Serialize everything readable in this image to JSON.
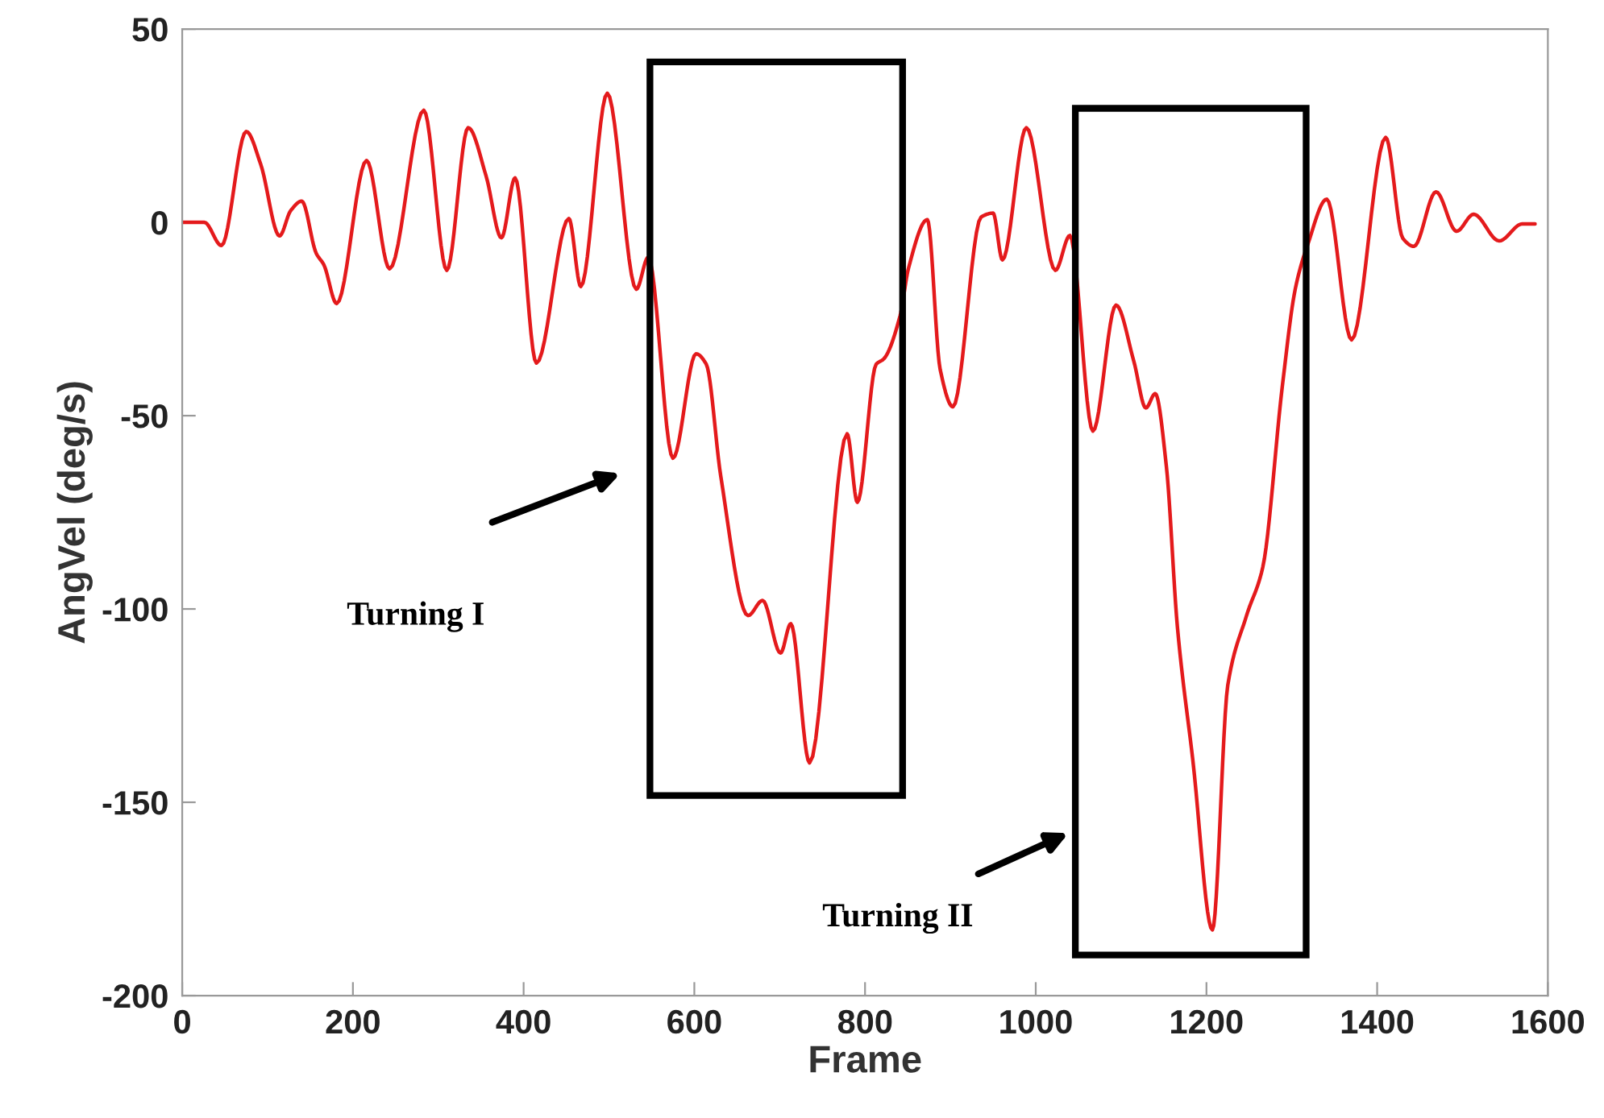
{
  "chart_data": {
    "type": "line",
    "xlabel": "Frame",
    "ylabel": "AngVel (deg/s)",
    "x": [
      0,
      26,
      46,
      75,
      92,
      114,
      127,
      140,
      157,
      166,
      181,
      216,
      243,
      283,
      310,
      335,
      356,
      374,
      390,
      415,
      453,
      467,
      498,
      532,
      546,
      575,
      602,
      614,
      631,
      663,
      680,
      701,
      713,
      735,
      779,
      791,
      813,
      822,
      841,
      851,
      873,
      888,
      903,
      936,
      950,
      961,
      989,
      1023,
      1040,
      1067,
      1094,
      1115,
      1129,
      1140,
      1153,
      1166,
      1184,
      1207,
      1225,
      1247,
      1266,
      1289,
      1304,
      1319,
      1341,
      1370,
      1410,
      1430,
      1443,
      1469,
      1493,
      1513,
      1543,
      1570,
      1585
    ],
    "series": [
      {
        "color": "#e41a1c",
        "values": [
          0,
          0,
          -6,
          23.5,
          15,
          -3.5,
          3,
          5.5,
          -8,
          -11,
          -21,
          16,
          -12,
          29,
          -12.4,
          24.5,
          12,
          -4,
          11.5,
          -36.4,
          1,
          -16.6,
          33.4,
          -17.3,
          -9,
          -61,
          -34,
          -36.7,
          -65.7,
          -101.7,
          -97.8,
          -111.4,
          -103.8,
          -139.8,
          -54.7,
          -72.4,
          -36.7,
          -35.3,
          -24.2,
          -11.8,
          0.7,
          -38,
          -47.7,
          1.4,
          2.4,
          -9.7,
          24.5,
          -12.4,
          -3.4,
          -54,
          -21.4,
          -36,
          -48,
          -44.3,
          -63,
          -104.7,
          -139,
          -183,
          -119.7,
          -101.7,
          -89.2,
          -42.2,
          -17.3,
          -5.5,
          6,
          -30.4,
          22,
          -4.1,
          -6.2,
          7.9,
          -2.3,
          2.1,
          -4.8,
          -0.4,
          -0.4
        ]
      }
    ],
    "xlim": [
      0,
      1600
    ],
    "ylim": [
      -200,
      50
    ],
    "xticks": [
      0,
      200,
      400,
      600,
      800,
      1000,
      1200,
      1400,
      1600
    ],
    "yticks": [
      -200,
      -150,
      -100,
      -50,
      0,
      50
    ],
    "annotations": [
      "Turning I",
      "Turning II"
    ],
    "grid": false,
    "marker": "none",
    "line_style": "solid"
  }
}
